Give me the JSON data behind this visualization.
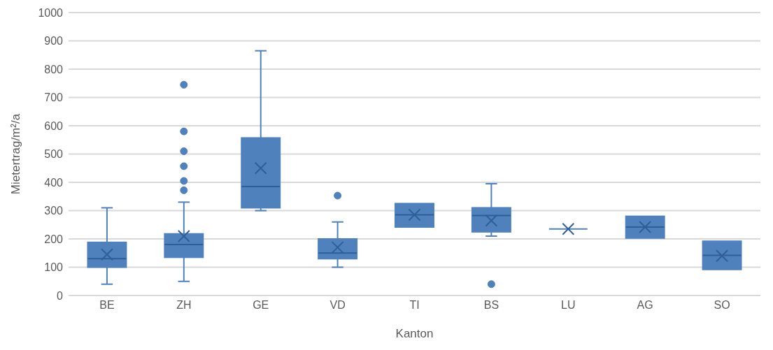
{
  "chart_data": {
    "type": "box",
    "xlabel": "Kanton",
    "ylabel": "Mietertrag/m²/a",
    "categories": [
      "BE",
      "ZH",
      "GE",
      "VD",
      "TI",
      "BS",
      "LU",
      "AG",
      "SO"
    ],
    "color": "#4f81bd",
    "boxes": [
      {
        "low": 40,
        "q1": 100,
        "median": 130,
        "q3": 188,
        "high": 310,
        "mean": 145
      },
      {
        "low": 50,
        "q1": 135,
        "median": 180,
        "q3": 218,
        "high": 330,
        "mean": 210,
        "outliers": [
          372,
          405,
          457,
          510,
          580,
          745
        ]
      },
      {
        "low": 300,
        "q1": 310,
        "median": 385,
        "q3": 557,
        "high": 865,
        "mean": 450
      },
      {
        "low": 100,
        "q1": 130,
        "median": 150,
        "q3": 200,
        "high": 260,
        "mean": 170,
        "outliers": [
          353
        ]
      },
      {
        "low": 242,
        "q1": 242,
        "median": 285,
        "q3": 325,
        "high": 325,
        "mean": 285
      },
      {
        "low": 210,
        "q1": 225,
        "median": 283,
        "q3": 310,
        "high": 395,
        "mean": 265,
        "outliers": [
          40
        ]
      },
      {
        "low": 235,
        "q1": 235,
        "median": 235,
        "q3": 235,
        "high": 235,
        "mean": 235
      },
      {
        "low": 203,
        "q1": 203,
        "median": 242,
        "q3": 280,
        "high": 280,
        "mean": 242
      },
      {
        "low": 92,
        "q1": 92,
        "median": 142,
        "q3": 192,
        "high": 192,
        "mean": 140
      }
    ],
    "ylim": [
      0,
      1000
    ],
    "yticks": [
      0,
      100,
      200,
      300,
      400,
      500,
      600,
      700,
      800,
      900,
      1000
    ],
    "grid": "y"
  }
}
